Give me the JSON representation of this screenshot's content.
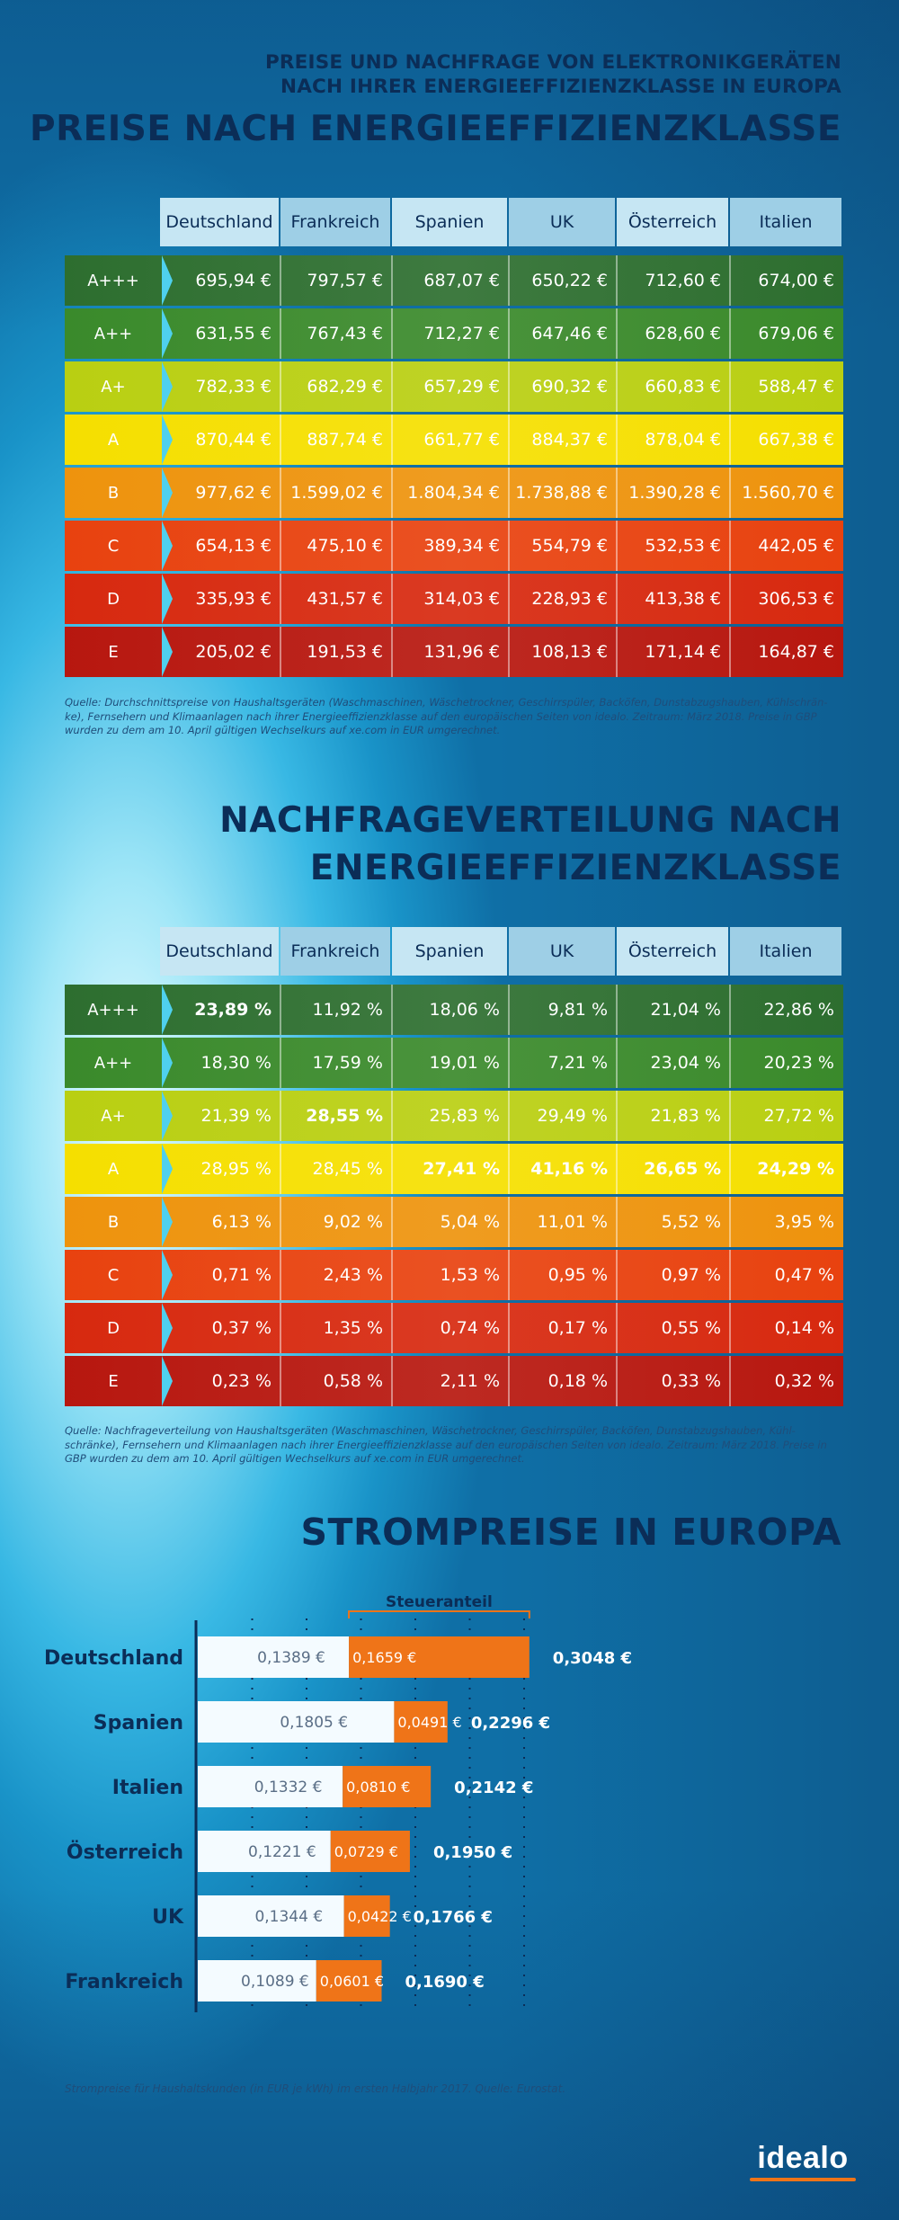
{
  "header": {
    "subtitle_line1": "PREISE UND NACHFRAGE VON ELEKTRONIKGERÄTEN",
    "subtitle_line2": "NACH IHRER ENERGIEEFFIZIENZKLASSE IN EUROPA",
    "title": "PREISE NACH ENERGIEEFFIZIENZKLASSE"
  },
  "section2": {
    "title_line1": "NACHFRAGEVERTEILUNG NACH",
    "title_line2": "ENERGIEEFFIZIENZKLASSE"
  },
  "section3": {
    "title": "STROMPREISE IN EUROPA",
    "tax_label": "Steueranteil"
  },
  "sources": {
    "prices": "Quelle: Durchschnittspreise von Haushaltsgeräten (Waschmaschinen, Wäschetrockner, Geschirrspüler, Backöfen, Dunstabzugshauben, Kühlschrän-ke), Fernsehern und Klimaanlagen nach ihrer Energieeffizienzklasse auf den europäischen Seiten von idealo. Zeitraum: März 2018. Preise in GBP wurden zu dem am 10. April gültigen Wechselkurs auf xe.com in EUR umgerechnet.",
    "demand": "Quelle: Nachfrageverteilung von Haushaltsgeräten (Waschmaschinen, Wäschetrockner, Geschirrspüler, Backöfen, Dunstabzugshauben, Kühl-schränke), Fernsehern und Klimaanlagen nach ihrer Energieeffizienzklasse auf den europäischen Seiten von idealo. Zeitraum: März 2018. Preise in GBP wurden zu dem am 10. April gültigen Wechselkurs auf xe.com in EUR umgerechnet.",
    "electricity": "Strompreise für Haushaltskunden (in EUR je kWh) im ersten Halbjahr 2017. Quelle: Eurostat."
  },
  "logo": "idealo",
  "colors": {
    "A+++": "#2d6e2f",
    "A++": "#3a8a2b",
    "A+": "#b9cf12",
    "A": "#f5df00",
    "B": "#ee930d",
    "C": "#e8420f",
    "D": "#d7290f",
    "E": "#b7170f",
    "navy": "#0b2d57",
    "orange": "#ef7418",
    "arrow": "#4fd0ee"
  },
  "chart_data": [
    {
      "type": "table",
      "title": "PREISE NACH ENERGIEEFFIZIENZKLASSE",
      "columns": [
        "Deutschland",
        "Frankreich",
        "Spanien",
        "UK",
        "Österreich",
        "Italien"
      ],
      "rows": [
        {
          "label": "A+++",
          "values": [
            "695,94 €",
            "797,57 €",
            "687,07 €",
            "650,22 €",
            "712,60 €",
            "674,00 €"
          ]
        },
        {
          "label": "A++",
          "values": [
            "631,55 €",
            "767,43 €",
            "712,27 €",
            "647,46 €",
            "628,60 €",
            "679,06 €"
          ]
        },
        {
          "label": "A+",
          "values": [
            "782,33 €",
            "682,29 €",
            "657,29 €",
            "690,32 €",
            "660,83 €",
            "588,47 €"
          ]
        },
        {
          "label": "A",
          "values": [
            "870,44 €",
            "887,74 €",
            "661,77 €",
            "884,37 €",
            "878,04 €",
            "667,38 €"
          ]
        },
        {
          "label": "B",
          "values": [
            "977,62 €",
            "1.599,02 €",
            "1.804,34 €",
            "1.738,88 €",
            "1.390,28 €",
            "1.560,70 €"
          ]
        },
        {
          "label": "C",
          "values": [
            "654,13 €",
            "475,10 €",
            "389,34 €",
            "554,79 €",
            "532,53 €",
            "442,05 €"
          ]
        },
        {
          "label": "D",
          "values": [
            "335,93 €",
            "431,57 €",
            "314,03 €",
            "228,93 €",
            "413,38 €",
            "306,53 €"
          ]
        },
        {
          "label": "E",
          "values": [
            "205,02 €",
            "191,53 €",
            "131,96 €",
            "108,13 €",
            "171,14 €",
            "164,87 €"
          ]
        }
      ]
    },
    {
      "type": "table",
      "title": "NACHFRAGEVERTEILUNG NACH ENERGIEEFFIZIENZKLASSE",
      "columns": [
        "Deutschland",
        "Frankreich",
        "Spanien",
        "UK",
        "Österreich",
        "Italien"
      ],
      "rows": [
        {
          "label": "A+++",
          "values": [
            "23,89 %",
            "11,92 %",
            "18,06 %",
            "9,81 %",
            "21,04 %",
            "22,86 %"
          ]
        },
        {
          "label": "A++",
          "values": [
            "18,30 %",
            "17,59 %",
            "19,01 %",
            "7,21 %",
            "23,04 %",
            "20,23 %"
          ]
        },
        {
          "label": "A+",
          "values": [
            "21,39 %",
            "28,55 %",
            "25,83 %",
            "29,49 %",
            "21,83 %",
            "27,72 %"
          ]
        },
        {
          "label": "A",
          "values": [
            "28,95 %",
            "28,45 %",
            "27,41 %",
            "41,16 %",
            "26,65 %",
            "24,29 %"
          ]
        },
        {
          "label": "B",
          "values": [
            "6,13 %",
            "9,02 %",
            "5,04 %",
            "11,01 %",
            "5,52 %",
            "3,95 %"
          ]
        },
        {
          "label": "C",
          "values": [
            "0,71 %",
            "2,43 %",
            "1,53 %",
            "0,95 %",
            "0,97 %",
            "0,47 %"
          ]
        },
        {
          "label": "D",
          "values": [
            "0,37 %",
            "1,35 %",
            "0,74 %",
            "0,17 %",
            "0,55 %",
            "0,14 %"
          ]
        },
        {
          "label": "E",
          "values": [
            "0,23 %",
            "0,58 %",
            "2,11 %",
            "0,18 %",
            "0,33 %",
            "0,32 %"
          ]
        }
      ],
      "highlighted": [
        [
          "A+++",
          "Deutschland"
        ],
        [
          "A+",
          "Frankreich"
        ],
        [
          "A",
          "Spanien"
        ],
        [
          "A",
          "UK"
        ],
        [
          "A",
          "Österreich"
        ],
        [
          "A",
          "Italien"
        ]
      ]
    },
    {
      "type": "bar",
      "stacked": true,
      "orientation": "horizontal",
      "title": "STROMPREISE IN EUROPA",
      "categories": [
        "Deutschland",
        "Spanien",
        "Italien",
        "Österreich",
        "UK",
        "Frankreich"
      ],
      "series": [
        {
          "name": "",
          "values": [
            0.1389,
            0.1805,
            0.1332,
            0.1221,
            0.1344,
            0.1089
          ],
          "labels": [
            "0,1389 €",
            "0,1805 €",
            "0,1332 €",
            "0,1221 €",
            "0,1344 €",
            "0,1089 €"
          ]
        },
        {
          "name": "Steueranteil",
          "values": [
            0.1659,
            0.0491,
            0.081,
            0.0729,
            0.0422,
            0.0601
          ],
          "labels": [
            "0,1659 €",
            "0,0491 €",
            "0,0810 €",
            "0,0729 €",
            "0,0422 €",
            "0,0601 €"
          ]
        }
      ],
      "totals": [
        0.3048,
        0.2296,
        0.2142,
        0.195,
        0.1766,
        0.169
      ],
      "total_labels": [
        "0,3048 €",
        "0,2296 €",
        "0,2142 €",
        "0,1950 €",
        "0,1766 €",
        "0,1690 €"
      ]
    }
  ]
}
